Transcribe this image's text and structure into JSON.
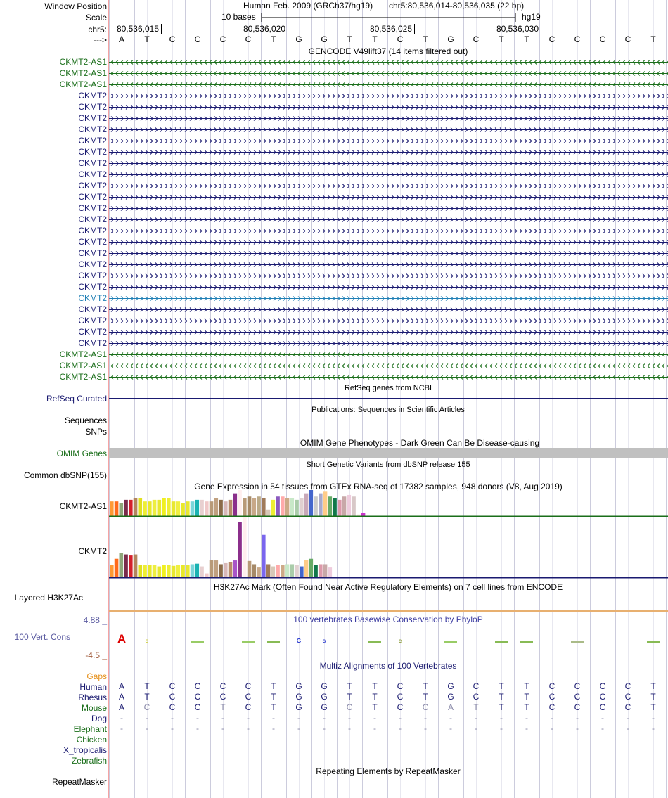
{
  "header": {
    "labels": {
      "window_position": "Window Position",
      "scale": "Scale",
      "chrom": "chr5:",
      "strand": "--->"
    },
    "window_title": "Human Feb. 2009 (GRCh37/hg19)",
    "position": "chr5:80,536,014-80,536,035 (22 bp)",
    "scale_text": "10 bases",
    "assembly": "hg19",
    "ticks": [
      "80,536,015",
      "80,536,020",
      "80,536,025",
      "80,536,030"
    ],
    "bases": [
      "A",
      "T",
      "C",
      "C",
      "C",
      "C",
      "T",
      "G",
      "G",
      "T",
      "T",
      "C",
      "T",
      "G",
      "C",
      "T",
      "T",
      "C",
      "C",
      "C",
      "C",
      "T"
    ]
  },
  "gencode": {
    "title": "GENCODE V49lift37 (14 items filtered out)",
    "colors": {
      "antisense": "#1a6e1a",
      "coding": "#1a1a70",
      "highlight": "#1f7fb5"
    },
    "items": [
      {
        "name": "CKMT2-AS1",
        "strand": "-",
        "kind": "antisense"
      },
      {
        "name": "CKMT2-AS1",
        "strand": "-",
        "kind": "antisense"
      },
      {
        "name": "CKMT2-AS1",
        "strand": "-",
        "kind": "antisense"
      },
      {
        "name": "CKMT2",
        "strand": "+",
        "kind": "coding"
      },
      {
        "name": "CKMT2",
        "strand": "+",
        "kind": "coding"
      },
      {
        "name": "CKMT2",
        "strand": "+",
        "kind": "coding"
      },
      {
        "name": "CKMT2",
        "strand": "+",
        "kind": "coding"
      },
      {
        "name": "CKMT2",
        "strand": "+",
        "kind": "coding"
      },
      {
        "name": "CKMT2",
        "strand": "+",
        "kind": "coding"
      },
      {
        "name": "CKMT2",
        "strand": "+",
        "kind": "coding"
      },
      {
        "name": "CKMT2",
        "strand": "+",
        "kind": "coding"
      },
      {
        "name": "CKMT2",
        "strand": "+",
        "kind": "coding"
      },
      {
        "name": "CKMT2",
        "strand": "+",
        "kind": "coding"
      },
      {
        "name": "CKMT2",
        "strand": "+",
        "kind": "coding"
      },
      {
        "name": "CKMT2",
        "strand": "+",
        "kind": "coding"
      },
      {
        "name": "CKMT2",
        "strand": "+",
        "kind": "coding"
      },
      {
        "name": "CKMT2",
        "strand": "+",
        "kind": "coding"
      },
      {
        "name": "CKMT2",
        "strand": "+",
        "kind": "coding"
      },
      {
        "name": "CKMT2",
        "strand": "+",
        "kind": "coding"
      },
      {
        "name": "CKMT2",
        "strand": "+",
        "kind": "coding"
      },
      {
        "name": "CKMT2",
        "strand": "+",
        "kind": "coding"
      },
      {
        "name": "CKMT2",
        "strand": "+",
        "kind": "highlight"
      },
      {
        "name": "CKMT2",
        "strand": "+",
        "kind": "coding"
      },
      {
        "name": "CKMT2",
        "strand": "+",
        "kind": "coding"
      },
      {
        "name": "CKMT2",
        "strand": "+",
        "kind": "coding"
      },
      {
        "name": "CKMT2",
        "strand": "+",
        "kind": "coding"
      },
      {
        "name": "CKMT2-AS1",
        "strand": "-",
        "kind": "antisense"
      },
      {
        "name": "CKMT2-AS1",
        "strand": "-",
        "kind": "antisense"
      },
      {
        "name": "CKMT2-AS1",
        "strand": "-",
        "kind": "antisense"
      }
    ]
  },
  "refseq": {
    "title": "RefSeq genes from NCBI",
    "label": "RefSeq Curated",
    "color": "#1a1a70"
  },
  "publications": {
    "title": "Publications: Sequences in Scientific Articles",
    "label": "Sequences"
  },
  "snps_label": "SNPs",
  "omim": {
    "title": "OMIM Gene Phenotypes - Dark Green Can Be Disease-causing",
    "label": "OMIM Genes",
    "color": "#1a6e1a",
    "bar_color": "#c0c0c0"
  },
  "dbsnp": {
    "title": "Short Genetic Variants from dbSNP release 155",
    "label": "Common dbSNP(155)"
  },
  "gtex": {
    "title": "Gene Expression in 54 tissues from GTEx RNA-seq of 17382 samples, 948 donors (V8, Aug 2019)",
    "genes": [
      {
        "name": "CKMT2-AS1",
        "baseline_color": "#1a6e1a",
        "values": [
          9,
          9,
          8,
          10,
          10,
          11,
          11,
          9,
          9,
          10,
          10,
          11,
          11,
          9,
          9,
          8,
          9,
          9,
          10,
          10,
          9,
          9,
          11,
          10,
          9,
          10,
          14,
          16,
          11,
          12,
          11,
          12,
          11,
          4,
          10,
          12,
          12,
          11,
          11,
          10,
          11,
          14,
          16,
          12,
          14,
          15,
          12,
          11,
          10,
          12,
          13,
          12,
          1,
          2
        ],
        "colors": [
          "#ff9933",
          "#ff6a1a",
          "#8fa67a",
          "#7a2b4b",
          "#d4202b",
          "#b3855e",
          "#e0e020",
          "#eeee33",
          "#e8e82a",
          "#eeee40",
          "#e8e830",
          "#f0f020",
          "#eeee33",
          "#e8e830",
          "#f0f040",
          "#e8e82a",
          "#e8e830",
          "#7ad6da",
          "#1ab3b3",
          "#e8d0d0",
          "#f0c8c8",
          "#b89a78",
          "#c0a080",
          "#8b6b4a",
          "#d8b8b8",
          "#b88b6b",
          "#8b2f8b",
          "#ffeeee",
          "#b89a78",
          "#a68a68",
          "#c8a888",
          "#bbaa88",
          "#a07a5a",
          "#d8c8b8",
          "#eeee33",
          "#8b5abf",
          "#ffaaaa",
          "#ccaa88",
          "#c8e8c8",
          "#aaccaa",
          "#e0d0d0",
          "#c8a8b8",
          "#4466cc",
          "#cccccc",
          "#aaaacc",
          "#ffcc88",
          "#66aa66",
          "#11774a",
          "#dd99aa",
          "#c8a8a8",
          "#eeccdd",
          "#d8c8c8",
          "#ffe0e0",
          "#cc33cc"
        ]
      },
      {
        "name": "CKMT2",
        "baseline_color": "#1a1a70",
        "values": [
          22,
          34,
          45,
          42,
          40,
          42,
          23,
          23,
          22,
          22,
          20,
          23,
          22,
          21,
          22,
          23,
          22,
          24,
          25,
          20,
          7,
          32,
          31,
          24,
          26,
          28,
          31,
          102,
          110,
          30,
          24,
          18,
          78,
          24,
          20,
          22,
          23,
          24,
          24,
          22,
          20,
          32,
          34,
          22,
          24,
          24,
          18
        ],
        "colors": [
          "#ff9933",
          "#ff6a1a",
          "#8fa67a",
          "#7a2b4b",
          "#d4202b",
          "#b3855e",
          "#e0e020",
          "#eeee33",
          "#e8e82a",
          "#eeee40",
          "#e8e830",
          "#f0f020",
          "#eeee33",
          "#e8e830",
          "#f0f040",
          "#e8e82a",
          "#e8e830",
          "#7ad6da",
          "#1ab3b3",
          "#e8d0d0",
          "#f0c8c8",
          "#b89a78",
          "#c0a080",
          "#8b6b4a",
          "#d8b8b8",
          "#b88b6b",
          "#a855c8",
          "#8b2f8b",
          "#ffeeee",
          "#b89a78",
          "#a68a68",
          "#c8a888",
          "#7a66ee",
          "#a07a5a",
          "#d8c8b8",
          "#ffaaaa",
          "#ccaa88",
          "#c8e8c8",
          "#aaccaa",
          "#e0d0d0",
          "#4466cc",
          "#ffcc88",
          "#66aa66",
          "#11774a",
          "#dd99aa",
          "#c8a8a8",
          "#eeccdd"
        ]
      }
    ]
  },
  "h3k27ac": {
    "title": "H3K27Ac Mark (Often Found Near Active Regulatory Elements) on 7 cell lines from ENCODE",
    "label": "Layered H3K27Ac",
    "color": "#e8b070"
  },
  "conservation": {
    "title": "100 vertebrates Basewise Conservation by PhyloP",
    "label": "100 Vert. Cons",
    "ymax": "4.88 _",
    "ymin": "-4.5 _",
    "color": "#5a5aa0",
    "min_color": "#a05a3a",
    "logo": [
      {
        "base": "A",
        "height": 2.4,
        "color": "#dd0000"
      },
      {
        "base": "G",
        "height": 0.4,
        "color": "#cccc33"
      },
      {
        "base": "",
        "height": 0,
        "color": "#ffffff"
      },
      {
        "base": "",
        "height": 0.1,
        "color": "#99cc66"
      },
      {
        "base": "",
        "height": 0,
        "color": "#ffffff"
      },
      {
        "base": "",
        "height": 0.1,
        "color": "#99cc66"
      },
      {
        "base": "",
        "height": 0.2,
        "color": "#88bb55"
      },
      {
        "base": "G",
        "height": 1.2,
        "color": "#2233cc"
      },
      {
        "base": "G",
        "height": 0.6,
        "color": "#2233cc"
      },
      {
        "base": "",
        "height": 0,
        "color": "#ffffff"
      },
      {
        "base": "",
        "height": 0.1,
        "color": "#88bb55"
      },
      {
        "base": "C",
        "height": 0.6,
        "color": "#889933"
      },
      {
        "base": "",
        "height": 0,
        "color": "#ffffff"
      },
      {
        "base": "",
        "height": 0.1,
        "color": "#99cc66"
      },
      {
        "base": "",
        "height": 0,
        "color": "#ffffff"
      },
      {
        "base": "",
        "height": 0.15,
        "color": "#88bb55"
      },
      {
        "base": "",
        "height": 0.1,
        "color": "#88bb55"
      },
      {
        "base": "",
        "height": 0,
        "color": "#ffffff"
      },
      {
        "base": "",
        "height": 0.1,
        "color": "#aabb88"
      },
      {
        "base": "",
        "height": 0,
        "color": "#ffffff"
      },
      {
        "base": "",
        "height": 0,
        "color": "#ffffff"
      },
      {
        "base": "",
        "height": 0.15,
        "color": "#88bb55"
      }
    ]
  },
  "multiz": {
    "title": "Multiz Alignments of 100 Vertebrates",
    "gaps_label": "Gaps",
    "gaps_color": "#e6901a",
    "species_color": "#1a6e1a",
    "human_color": "#1a1a70",
    "rows": [
      {
        "name": "Human",
        "color": "#1a1a70",
        "seq": [
          "A",
          "T",
          "C",
          "C",
          "C",
          "C",
          "T",
          "G",
          "G",
          "T",
          "T",
          "C",
          "T",
          "G",
          "C",
          "T",
          "T",
          "C",
          "C",
          "C",
          "C",
          "T"
        ],
        "diff": [
          0,
          0,
          0,
          0,
          0,
          0,
          0,
          0,
          0,
          0,
          0,
          0,
          0,
          0,
          0,
          0,
          0,
          0,
          0,
          0,
          0,
          0
        ]
      },
      {
        "name": "Rhesus",
        "color": "#1a1a70",
        "seq": [
          "A",
          "T",
          "C",
          "C",
          "C",
          "C",
          "T",
          "G",
          "G",
          "T",
          "T",
          "C",
          "T",
          "G",
          "C",
          "T",
          "T",
          "C",
          "C",
          "C",
          "C",
          "T"
        ],
        "diff": [
          0,
          0,
          0,
          0,
          0,
          0,
          0,
          0,
          0,
          0,
          0,
          0,
          0,
          0,
          0,
          0,
          0,
          0,
          0,
          0,
          0,
          0
        ]
      },
      {
        "name": "Mouse",
        "color": "#1a6e1a",
        "seq": [
          "A",
          "C",
          "C",
          "C",
          "T",
          "C",
          "T",
          "G",
          "G",
          "C",
          "T",
          "C",
          "C",
          "A",
          "T",
          "T",
          "T",
          "C",
          "C",
          "C",
          "C",
          "T"
        ],
        "diff": [
          0,
          1,
          0,
          0,
          1,
          0,
          0,
          0,
          0,
          1,
          0,
          0,
          1,
          1,
          1,
          0,
          0,
          0,
          0,
          0,
          0,
          0
        ]
      },
      {
        "name": "Dog",
        "color": "#1a1a70",
        "seq": [
          "-",
          "-",
          "-",
          "-",
          "-",
          "-",
          "-",
          "-",
          "-",
          "-",
          "-",
          "-",
          "-",
          "-",
          "-",
          "-",
          "-",
          "-",
          "-",
          "-",
          "-",
          "-"
        ],
        "diff": [
          1,
          1,
          1,
          1,
          1,
          1,
          1,
          1,
          1,
          1,
          1,
          1,
          1,
          1,
          1,
          1,
          1,
          1,
          1,
          1,
          1,
          1
        ]
      },
      {
        "name": "Elephant",
        "color": "#1a6e1a",
        "seq": [
          "-",
          "-",
          "-",
          "-",
          "-",
          "-",
          "-",
          "-",
          "-",
          "-",
          "-",
          "-",
          "-",
          "-",
          "-",
          "-",
          "-",
          "-",
          "-",
          "-",
          "-",
          "-"
        ],
        "diff": [
          1,
          1,
          1,
          1,
          1,
          1,
          1,
          1,
          1,
          1,
          1,
          1,
          1,
          1,
          1,
          1,
          1,
          1,
          1,
          1,
          1,
          1
        ]
      },
      {
        "name": "Chicken",
        "color": "#1a6e1a",
        "seq": [
          "=",
          "=",
          "=",
          "=",
          "=",
          "=",
          "=",
          "=",
          "=",
          "=",
          "=",
          "=",
          "=",
          "=",
          "=",
          "=",
          "=",
          "=",
          "=",
          "=",
          "=",
          "="
        ],
        "diff": [
          1,
          1,
          1,
          1,
          1,
          1,
          1,
          1,
          1,
          1,
          1,
          1,
          1,
          1,
          1,
          1,
          1,
          1,
          1,
          1,
          1,
          1
        ]
      },
      {
        "name": "X_tropicalis",
        "color": "#1a1a70",
        "seq": [],
        "diff": []
      },
      {
        "name": "Zebrafish",
        "color": "#1a6e1a",
        "seq": [
          "=",
          "=",
          "=",
          "=",
          "=",
          "=",
          "=",
          "=",
          "=",
          "=",
          "=",
          "=",
          "=",
          "=",
          "=",
          "=",
          "=",
          "=",
          "=",
          "=",
          "=",
          "="
        ],
        "diff": [
          1,
          1,
          1,
          1,
          1,
          1,
          1,
          1,
          1,
          1,
          1,
          1,
          1,
          1,
          1,
          1,
          1,
          1,
          1,
          1,
          1,
          1
        ]
      }
    ]
  },
  "repeatmasker": {
    "title": "Repeating Elements by RepeatMasker",
    "label": "RepeatMasker"
  }
}
